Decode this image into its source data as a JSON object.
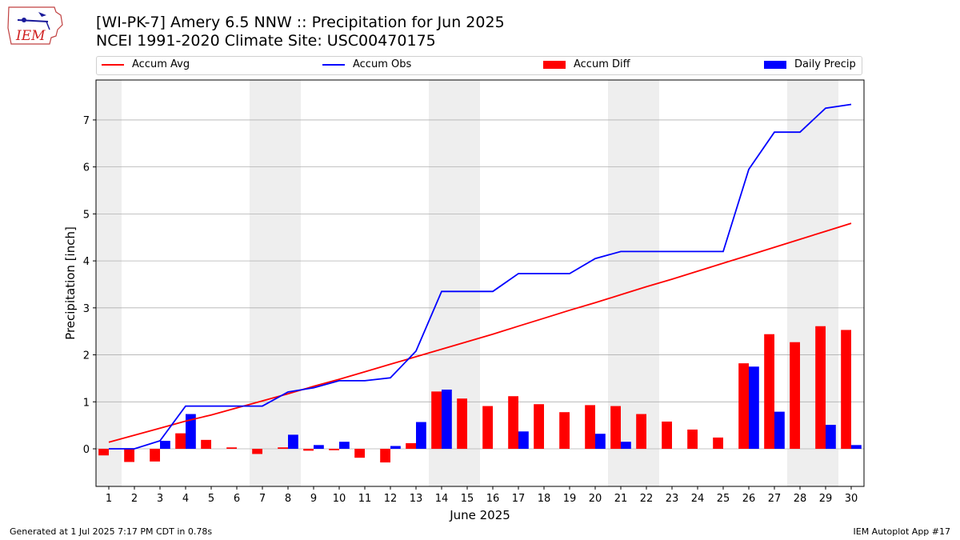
{
  "title_line1": "[WI-PK-7] Amery 6.5 NNW :: Precipitation for Jun 2025",
  "title_line2": "NCEI 1991-2020 Climate Site: USC00470175",
  "logo_text": "IEM",
  "footer_left": "Generated at 1 Jul 2025 7:17 PM CDT in 0.78s",
  "footer_right": "IEM Autoplot App #17",
  "colors": {
    "avg": "#ff0000",
    "obs": "#0000ff",
    "diff": "#ff0000",
    "daily": "#0000ff",
    "weekend": "#eeeeee",
    "grid": "#b0b0b0"
  },
  "legend": [
    {
      "label": "Accum Avg",
      "kind": "line",
      "color": "#ff0000"
    },
    {
      "label": "Accum Obs",
      "kind": "line",
      "color": "#0000ff"
    },
    {
      "label": "Accum Diff",
      "kind": "box",
      "color": "#ff0000"
    },
    {
      "label": "Daily Precip",
      "kind": "box",
      "color": "#0000ff"
    }
  ],
  "chart_data": {
    "type": "bar",
    "xlabel": "June 2025",
    "ylabel": "Precipitation [inch]",
    "ylim": [
      -0.8,
      7.85
    ],
    "xlim": [
      0.5,
      30.5
    ],
    "yticks": [
      0,
      1,
      2,
      3,
      4,
      5,
      6,
      7
    ],
    "x": [
      1,
      2,
      3,
      4,
      5,
      6,
      7,
      8,
      9,
      10,
      11,
      12,
      13,
      14,
      15,
      16,
      17,
      18,
      19,
      20,
      21,
      22,
      23,
      24,
      25,
      26,
      27,
      28,
      29,
      30
    ],
    "shaded_day_ranges": [
      [
        1,
        1
      ],
      [
        7,
        8
      ],
      [
        14,
        15
      ],
      [
        21,
        22
      ],
      [
        28,
        29
      ]
    ],
    "grid": true,
    "series": [
      {
        "name": "Accum Avg",
        "kind": "line",
        "values": [
          0.14,
          0.29,
          0.44,
          0.59,
          0.72,
          0.87,
          1.02,
          1.17,
          1.33,
          1.48,
          1.64,
          1.8,
          1.96,
          2.12,
          2.28,
          2.44,
          2.61,
          2.78,
          2.95,
          3.11,
          3.28,
          3.45,
          3.61,
          3.78,
          3.95,
          4.12,
          4.29,
          4.46,
          4.63,
          4.8
        ]
      },
      {
        "name": "Accum Obs",
        "kind": "line",
        "values": [
          0.0,
          0.0,
          0.17,
          0.91,
          0.91,
          0.91,
          0.91,
          1.21,
          1.3,
          1.45,
          1.45,
          1.51,
          2.08,
          3.35,
          3.35,
          3.35,
          3.73,
          3.73,
          3.73,
          4.05,
          4.2,
          4.2,
          4.2,
          4.2,
          4.2,
          5.95,
          6.74,
          6.74,
          7.25,
          7.33
        ]
      },
      {
        "name": "Accum Diff",
        "kind": "bar",
        "values": [
          -0.14,
          -0.28,
          -0.27,
          0.33,
          0.19,
          0.03,
          -0.11,
          0.03,
          -0.04,
          -0.03,
          -0.19,
          -0.29,
          0.12,
          1.22,
          1.07,
          0.91,
          1.12,
          0.95,
          0.78,
          0.93,
          0.91,
          0.74,
          0.58,
          0.41,
          0.24,
          1.82,
          2.44,
          2.27,
          2.61,
          2.53
        ]
      },
      {
        "name": "Daily Precip",
        "kind": "bar",
        "values": [
          0.0,
          0.0,
          0.17,
          0.74,
          0.0,
          0.0,
          0.0,
          0.3,
          0.08,
          0.15,
          0.0,
          0.06,
          0.57,
          1.26,
          0.0,
          0.0,
          0.37,
          0.0,
          0.0,
          0.32,
          0.15,
          0.0,
          0.0,
          0.0,
          0.0,
          1.75,
          0.79,
          0.0,
          0.51,
          0.08
        ]
      }
    ]
  }
}
